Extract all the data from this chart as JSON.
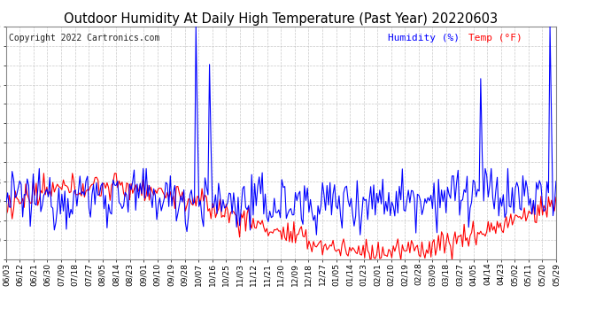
{
  "title": "Outdoor Humidity At Daily High Temperature (Past Year) 20220603",
  "copyright": "Copyright 2022 Cartronics.com",
  "legend_humidity": "Humidity (%)",
  "legend_temp": "Temp (°F)",
  "humidity_color": "#0000ff",
  "temp_color": "#ff0000",
  "bg_color": "#ffffff",
  "grid_color": "#bbbbbb",
  "title_fontsize": 10.5,
  "copyright_fontsize": 7,
  "legend_fontsize": 8,
  "ytick_fontsize": 7.5,
  "xtick_fontsize": 6.5,
  "ylim": [
    9.5,
    255.0
  ],
  "yticks": [
    9.5,
    30.0,
    50.4,
    70.9,
    91.3,
    111.8,
    132.2,
    152.7,
    173.2,
    193.6,
    214.1,
    234.5,
    255.0
  ],
  "x_labels": [
    "06/03",
    "06/12",
    "06/21",
    "06/30",
    "07/09",
    "07/18",
    "07/27",
    "08/05",
    "08/14",
    "08/23",
    "09/01",
    "09/10",
    "09/19",
    "09/28",
    "10/07",
    "10/16",
    "10/25",
    "11/03",
    "11/12",
    "11/21",
    "11/30",
    "12/09",
    "12/18",
    "12/27",
    "01/05",
    "01/14",
    "01/23",
    "02/01",
    "02/10",
    "02/19",
    "02/28",
    "03/09",
    "03/18",
    "03/27",
    "04/05",
    "04/14",
    "04/23",
    "05/02",
    "05/11",
    "05/20",
    "05/29"
  ],
  "n_points": 366,
  "humidity_base": 75,
  "humidity_amp": 8,
  "temp_summer": 85,
  "temp_winter": 20
}
